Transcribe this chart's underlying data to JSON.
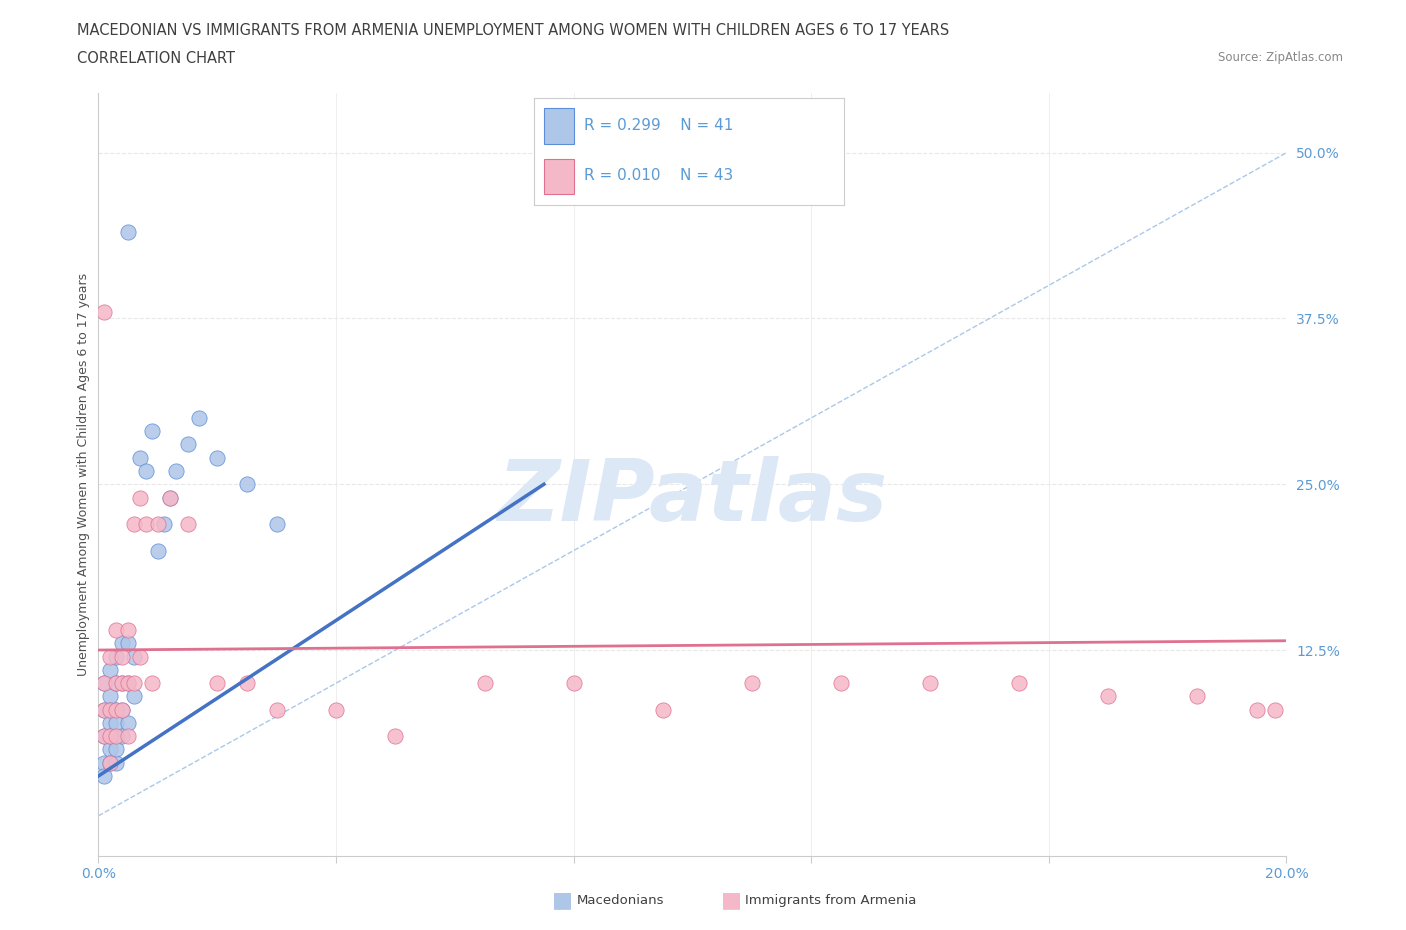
{
  "title_line1": "MACEDONIAN VS IMMIGRANTS FROM ARMENIA UNEMPLOYMENT AMONG WOMEN WITH CHILDREN AGES 6 TO 17 YEARS",
  "title_line2": "CORRELATION CHART",
  "source_text": "Source: ZipAtlas.com",
  "ylabel": "Unemployment Among Women with Children Ages 6 to 17 years",
  "xlim": [
    0.0,
    0.2
  ],
  "ylim": [
    -0.03,
    0.545
  ],
  "xticks": [
    0.0,
    0.04,
    0.08,
    0.12,
    0.16,
    0.2
  ],
  "xticklabels": [
    "0.0%",
    "",
    "",
    "",
    "",
    "20.0%"
  ],
  "yticks": [
    0.0,
    0.125,
    0.25,
    0.375,
    0.5
  ],
  "yticklabels": [
    "",
    "12.5%",
    "25.0%",
    "37.5%",
    "50.0%"
  ],
  "R1": "0.299",
  "N1": "41",
  "R2": "0.010",
  "N2": "43",
  "mac_x": [
    0.001,
    0.001,
    0.001,
    0.001,
    0.001,
    0.002,
    0.002,
    0.002,
    0.002,
    0.002,
    0.002,
    0.002,
    0.003,
    0.003,
    0.003,
    0.003,
    0.003,
    0.003,
    0.003,
    0.004,
    0.004,
    0.004,
    0.004,
    0.005,
    0.005,
    0.005,
    0.006,
    0.006,
    0.007,
    0.008,
    0.009,
    0.01,
    0.011,
    0.012,
    0.013,
    0.015,
    0.017,
    0.02,
    0.025,
    0.03,
    0.005
  ],
  "mac_y": [
    0.04,
    0.06,
    0.08,
    0.1,
    0.03,
    0.05,
    0.07,
    0.09,
    0.11,
    0.04,
    0.06,
    0.08,
    0.04,
    0.06,
    0.08,
    0.1,
    0.05,
    0.07,
    0.12,
    0.06,
    0.08,
    0.1,
    0.13,
    0.07,
    0.1,
    0.13,
    0.09,
    0.12,
    0.27,
    0.26,
    0.29,
    0.2,
    0.22,
    0.24,
    0.26,
    0.28,
    0.3,
    0.27,
    0.25,
    0.22,
    0.44
  ],
  "arm_x": [
    0.001,
    0.001,
    0.001,
    0.002,
    0.002,
    0.002,
    0.002,
    0.003,
    0.003,
    0.003,
    0.003,
    0.004,
    0.004,
    0.004,
    0.005,
    0.005,
    0.005,
    0.006,
    0.006,
    0.007,
    0.007,
    0.008,
    0.009,
    0.01,
    0.012,
    0.015,
    0.02,
    0.025,
    0.03,
    0.04,
    0.05,
    0.065,
    0.08,
    0.095,
    0.11,
    0.125,
    0.14,
    0.155,
    0.17,
    0.185,
    0.195,
    0.198,
    0.001
  ],
  "arm_y": [
    0.06,
    0.08,
    0.1,
    0.04,
    0.06,
    0.08,
    0.12,
    0.06,
    0.08,
    0.1,
    0.14,
    0.08,
    0.1,
    0.12,
    0.06,
    0.1,
    0.14,
    0.1,
    0.22,
    0.12,
    0.24,
    0.22,
    0.1,
    0.22,
    0.24,
    0.22,
    0.1,
    0.1,
    0.08,
    0.08,
    0.06,
    0.1,
    0.1,
    0.08,
    0.1,
    0.1,
    0.1,
    0.1,
    0.09,
    0.09,
    0.08,
    0.08,
    0.38
  ],
  "blue_fill": "#aec6e8",
  "blue_edge": "#5b8dd9",
  "pink_fill": "#f5b8c8",
  "pink_edge": "#e07090",
  "blue_trend": "#4472C4",
  "pink_trend": "#e07090",
  "diag_color": "#aac8e8",
  "watermark_color": "#dce8f5",
  "grid_color": "#e8e8e8",
  "tick_color": "#5b9bd5",
  "title_color": "#404040",
  "ylabel_color": "#505050"
}
